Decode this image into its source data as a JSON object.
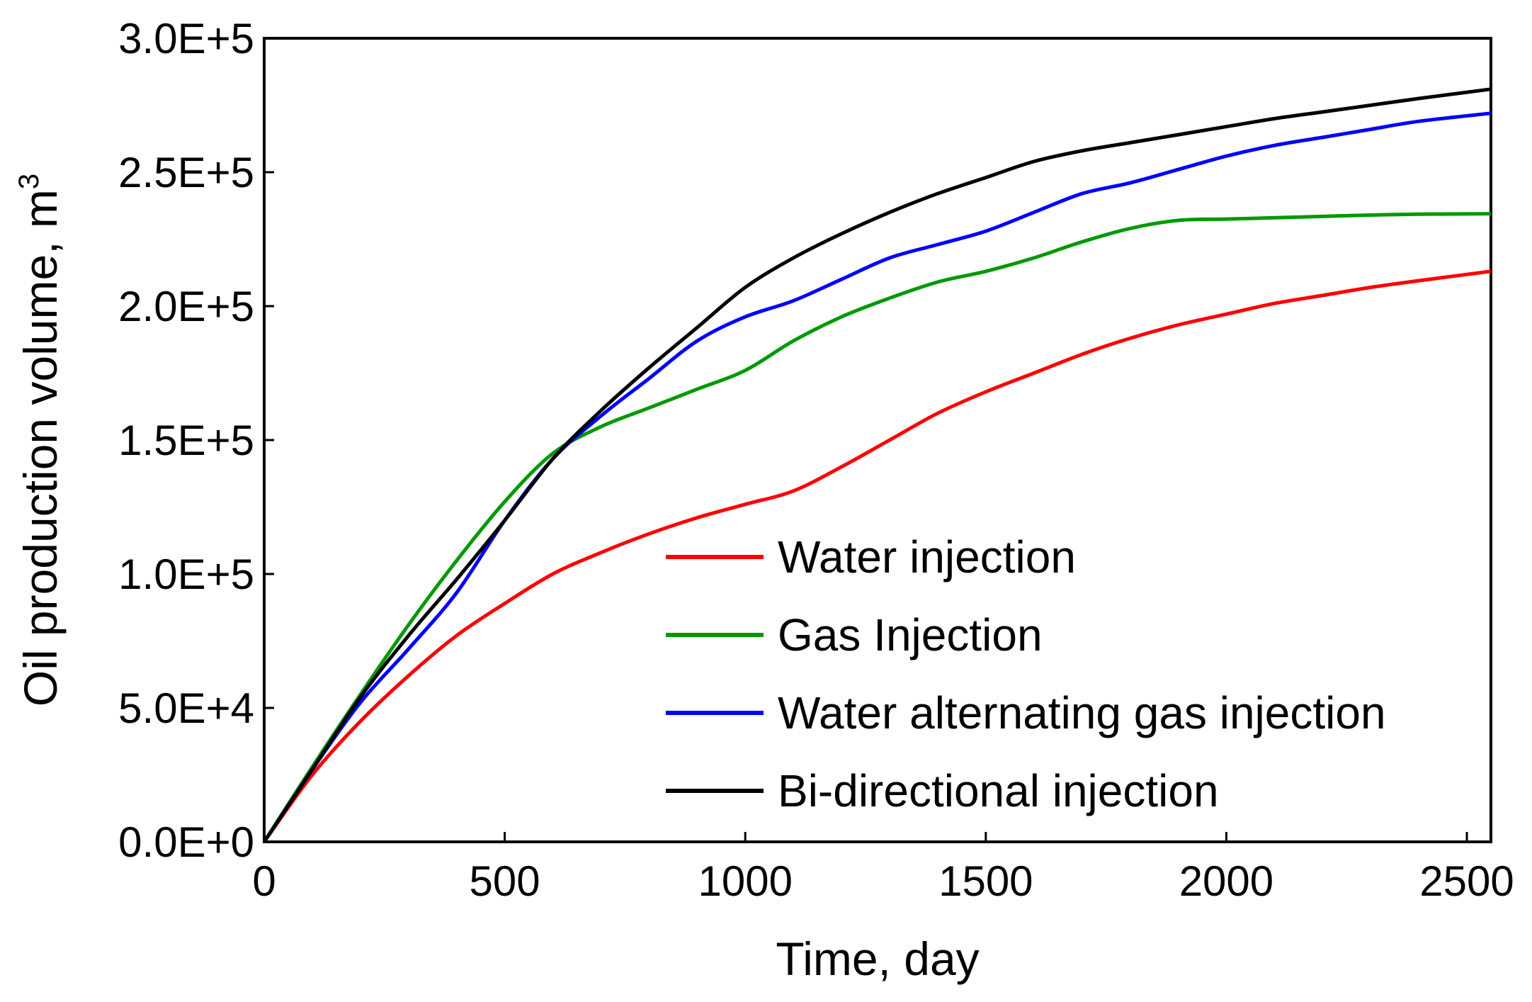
{
  "chart_data": {
    "type": "line",
    "xlabel": "Time, day",
    "ylabel": "Oil production volume, m",
    "ylabel_superscript": "3",
    "xlim": [
      0,
      2550
    ],
    "ylim": [
      0,
      300000
    ],
    "x_ticks": [
      0,
      500,
      1000,
      1500,
      2000,
      2500
    ],
    "x_tick_labels": [
      "0",
      "500",
      "1000",
      "1500",
      "2000",
      "2500"
    ],
    "y_ticks": [
      0,
      50000,
      100000,
      150000,
      200000,
      250000,
      300000
    ],
    "y_tick_labels": [
      "0.0E+0",
      "5.0E+4",
      "1.0E+5",
      "1.5E+5",
      "2.0E+5",
      "2.5E+5",
      "3.0E+5"
    ],
    "grid": false,
    "legend_position": "lower-right",
    "series": [
      {
        "name": "Water injection",
        "color": "#ff0000",
        "points": [
          [
            0,
            0
          ],
          [
            100,
            25000
          ],
          [
            200,
            45000
          ],
          [
            300,
            62000
          ],
          [
            400,
            77000
          ],
          [
            500,
            89000
          ],
          [
            600,
            100000
          ],
          [
            700,
            108000
          ],
          [
            800,
            115000
          ],
          [
            900,
            121000
          ],
          [
            1000,
            126000
          ],
          [
            1100,
            131000
          ],
          [
            1200,
            140000
          ],
          [
            1300,
            150000
          ],
          [
            1400,
            160000
          ],
          [
            1500,
            168000
          ],
          [
            1600,
            175000
          ],
          [
            1700,
            182000
          ],
          [
            1800,
            188000
          ],
          [
            1900,
            193000
          ],
          [
            2000,
            197000
          ],
          [
            2100,
            201000
          ],
          [
            2200,
            204000
          ],
          [
            2300,
            207000
          ],
          [
            2400,
            209500
          ],
          [
            2550,
            213000
          ]
        ]
      },
      {
        "name": "Gas Injection",
        "color": "#009900",
        "points": [
          [
            0,
            0
          ],
          [
            100,
            28000
          ],
          [
            200,
            55000
          ],
          [
            300,
            81000
          ],
          [
            400,
            105000
          ],
          [
            500,
            127000
          ],
          [
            600,
            145000
          ],
          [
            700,
            155000
          ],
          [
            800,
            162000
          ],
          [
            900,
            169000
          ],
          [
            1000,
            176000
          ],
          [
            1100,
            187000
          ],
          [
            1200,
            196000
          ],
          [
            1300,
            203000
          ],
          [
            1400,
            209000
          ],
          [
            1500,
            213000
          ],
          [
            1600,
            218000
          ],
          [
            1700,
            224000
          ],
          [
            1800,
            229000
          ],
          [
            1900,
            232000
          ],
          [
            2000,
            232500
          ],
          [
            2100,
            233000
          ],
          [
            2200,
            233500
          ],
          [
            2300,
            234000
          ],
          [
            2400,
            234300
          ],
          [
            2550,
            234500
          ]
        ]
      },
      {
        "name": "Water alternating gas injection",
        "color": "#0000ff",
        "points": [
          [
            0,
            0
          ],
          [
            100,
            27000
          ],
          [
            200,
            52000
          ],
          [
            300,
            72000
          ],
          [
            400,
            93000
          ],
          [
            500,
            120000
          ],
          [
            600,
            143000
          ],
          [
            700,
            159000
          ],
          [
            800,
            173000
          ],
          [
            900,
            187000
          ],
          [
            1000,
            196000
          ],
          [
            1100,
            202000
          ],
          [
            1200,
            210000
          ],
          [
            1300,
            218000
          ],
          [
            1400,
            223000
          ],
          [
            1500,
            228000
          ],
          [
            1600,
            235000
          ],
          [
            1700,
            242000
          ],
          [
            1800,
            246000
          ],
          [
            1900,
            251000
          ],
          [
            2000,
            256000
          ],
          [
            2100,
            260000
          ],
          [
            2200,
            263000
          ],
          [
            2300,
            266000
          ],
          [
            2400,
            269000
          ],
          [
            2550,
            272000
          ]
        ]
      },
      {
        "name": "Bi-directional injection",
        "color": "#000000",
        "points": [
          [
            0,
            0
          ],
          [
            100,
            27000
          ],
          [
            200,
            54000
          ],
          [
            300,
            77000
          ],
          [
            400,
            98000
          ],
          [
            500,
            120000
          ],
          [
            600,
            143000
          ],
          [
            700,
            161000
          ],
          [
            800,
            177000
          ],
          [
            900,
            192000
          ],
          [
            1000,
            207000
          ],
          [
            1100,
            218000
          ],
          [
            1200,
            227000
          ],
          [
            1300,
            235000
          ],
          [
            1400,
            242000
          ],
          [
            1500,
            248000
          ],
          [
            1600,
            254000
          ],
          [
            1700,
            258000
          ],
          [
            1800,
            261000
          ],
          [
            1900,
            264000
          ],
          [
            2000,
            267000
          ],
          [
            2100,
            270000
          ],
          [
            2200,
            272500
          ],
          [
            2300,
            275000
          ],
          [
            2400,
            277500
          ],
          [
            2550,
            281000
          ]
        ]
      }
    ]
  }
}
